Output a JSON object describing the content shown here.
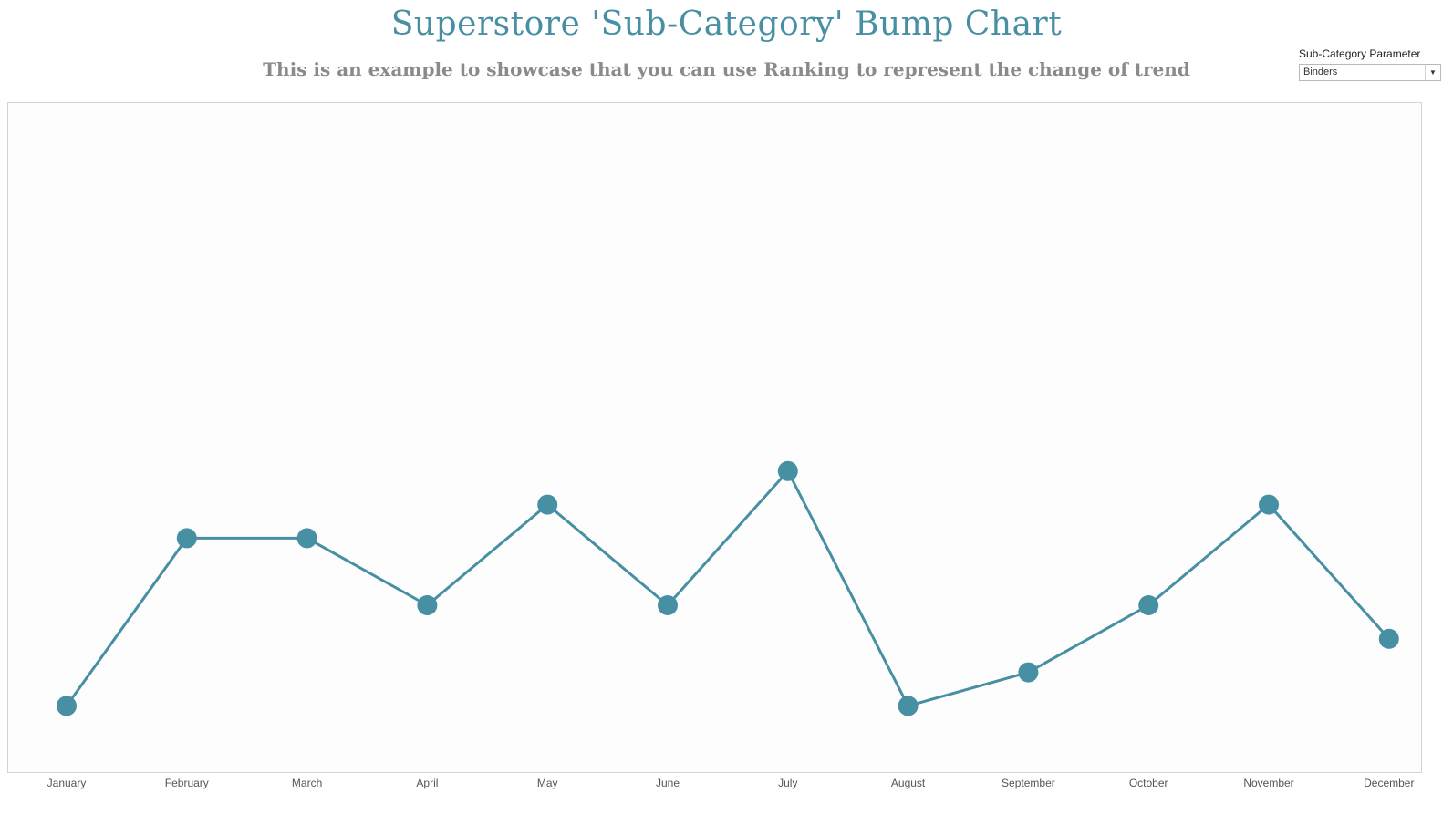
{
  "header": {
    "title": "Superstore 'Sub-Category' Bump Chart",
    "subtitle": "This is an example to showcase that you can use Ranking to represent the change of trend"
  },
  "parameter": {
    "label": "Sub-Category Parameter",
    "selected": "Binders"
  },
  "colors": {
    "accent": "#478fa3",
    "subtitle": "#8a8a8a"
  },
  "chart_data": {
    "type": "line",
    "categories": [
      "January",
      "February",
      "March",
      "April",
      "May",
      "June",
      "July",
      "August",
      "September",
      "October",
      "November",
      "December"
    ],
    "series": [
      {
        "values": [
          15,
          10,
          10,
          12,
          9,
          12,
          8,
          15,
          14,
          12,
          9,
          13
        ]
      }
    ],
    "ylim": [
      17,
      -3
    ],
    "y_reversed": true,
    "grid": false,
    "markers": true
  }
}
